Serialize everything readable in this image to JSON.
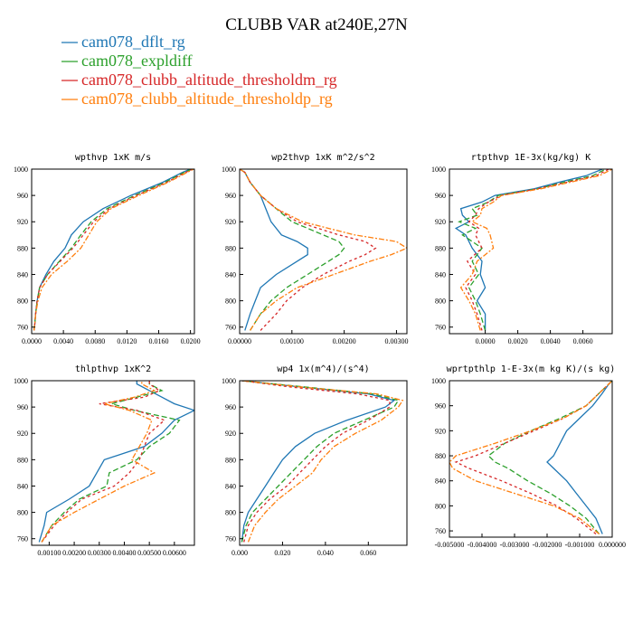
{
  "figure_title": "CLUBB VAR at240E,27N",
  "colors": {
    "blue": "#1f77b4",
    "green": "#2ca02c",
    "red": "#d62728",
    "orange": "#ff7f0e"
  },
  "legend": [
    {
      "label": "cam078_dflt_rg",
      "color": "#1f77b4",
      "dash": ""
    },
    {
      "label": "cam078_expldiff",
      "color": "#2ca02c",
      "dash": "6,3"
    },
    {
      "label": "cam078_clubb_altitude_thresholdm_rg",
      "color": "#d62728",
      "dash": "3,3"
    },
    {
      "label": "cam078_clubb_altitude_thresholdp_rg",
      "color": "#ff7f0e",
      "dash": "6,2,2,2"
    }
  ],
  "chart_data": [
    {
      "type": "line",
      "title": "wpthvp  1xK m/s",
      "xlim": [
        0,
        0.0205
      ],
      "ylim": [
        1000,
        750
      ],
      "xticks": [
        "0.0000",
        "0.0040",
        "0.0080",
        "0.0120",
        "0.0160",
        "0.0200"
      ],
      "xtick_values": [
        0,
        0.004,
        0.008,
        0.012,
        0.016,
        0.02
      ],
      "yticks": [
        "760",
        "800",
        "840",
        "880",
        "920",
        "960",
        "1000"
      ],
      "y": [
        755,
        765,
        780,
        800,
        820,
        840,
        860,
        880,
        900,
        920,
        940,
        960,
        980,
        995,
        1000
      ],
      "series": [
        {
          "color_key": "blue",
          "values": [
            0.0003,
            0.0004,
            0.0005,
            0.0007,
            0.001,
            0.0018,
            0.0028,
            0.0042,
            0.005,
            0.0065,
            0.009,
            0.0125,
            0.0165,
            0.019,
            0.02
          ]
        },
        {
          "color_key": "green",
          "values": [
            0.0003,
            0.0004,
            0.0005,
            0.0007,
            0.001,
            0.002,
            0.0035,
            0.005,
            0.0062,
            0.0075,
            0.0095,
            0.013,
            0.0168,
            0.0192,
            0.0202
          ]
        },
        {
          "color_key": "red",
          "values": [
            0.0003,
            0.0004,
            0.0005,
            0.0007,
            0.001,
            0.002,
            0.0036,
            0.0052,
            0.0065,
            0.0078,
            0.0098,
            0.0132,
            0.017,
            0.0194,
            0.0203
          ]
        },
        {
          "color_key": "orange",
          "values": [
            0.0003,
            0.0004,
            0.0005,
            0.0008,
            0.0013,
            0.0025,
            0.0045,
            0.0062,
            0.0072,
            0.0082,
            0.01,
            0.0135,
            0.0172,
            0.0196,
            0.0204
          ]
        }
      ]
    },
    {
      "type": "line",
      "title": "wp2thvp  1xK m^2/s^2",
      "xlim": [
        0,
        0.0032
      ],
      "ylim": [
        1000,
        750
      ],
      "xticks": [
        "0.00000",
        "0.00100",
        "0.00200",
        "0.00300"
      ],
      "xtick_values": [
        0,
        0.001,
        0.002,
        0.003
      ],
      "yticks": [
        "760",
        "800",
        "840",
        "880",
        "920",
        "960",
        "1000"
      ],
      "y": [
        755,
        780,
        800,
        820,
        840,
        860,
        870,
        880,
        890,
        900,
        920,
        940,
        960,
        980,
        995,
        1000
      ],
      "series": [
        {
          "color_key": "blue",
          "values": [
            0.0001,
            0.0002,
            0.0003,
            0.0004,
            0.0007,
            0.0011,
            0.0013,
            0.0013,
            0.0011,
            0.0008,
            0.0006,
            0.0005,
            0.0004,
            0.0002,
            0.0001,
            0.0
          ]
        },
        {
          "color_key": "green",
          "values": [
            0.0002,
            0.0004,
            0.0006,
            0.0009,
            0.0013,
            0.0017,
            0.0019,
            0.002,
            0.0019,
            0.0016,
            0.001,
            0.0007,
            0.0004,
            0.0002,
            0.0001,
            0.0
          ]
        },
        {
          "color_key": "red",
          "values": [
            0.0004,
            0.0007,
            0.0009,
            0.0012,
            0.0016,
            0.0021,
            0.0024,
            0.0026,
            0.0024,
            0.0019,
            0.0011,
            0.0007,
            0.0004,
            0.0002,
            0.0001,
            0.0
          ]
        },
        {
          "color_key": "orange",
          "values": [
            0.0002,
            0.0004,
            0.0007,
            0.0011,
            0.0018,
            0.0025,
            0.0029,
            0.0032,
            0.003,
            0.0022,
            0.0012,
            0.0007,
            0.0004,
            0.0002,
            0.0001,
            0.0
          ]
        }
      ]
    },
    {
      "type": "line",
      "title": "rtpthvp  1E-3x(kg/kg) K",
      "xlim": [
        -0.0022,
        0.0078
      ],
      "ylim": [
        1000,
        750
      ],
      "xticks": [
        "0.0000",
        "0.0020",
        "0.0040",
        "0.0060"
      ],
      "xtick_values": [
        0,
        0.002,
        0.004,
        0.006
      ],
      "yticks": [
        "760",
        "800",
        "840",
        "880",
        "920",
        "960",
        "1000"
      ],
      "y": [
        755,
        780,
        800,
        820,
        840,
        860,
        880,
        900,
        910,
        920,
        930,
        940,
        950,
        960,
        970,
        980,
        990,
        1000
      ],
      "series": [
        {
          "color_key": "blue",
          "values": [
            0.0,
            0.0,
            -0.0005,
            0.0,
            -0.0003,
            -0.0002,
            -0.0008,
            -0.0012,
            -0.0018,
            -0.001,
            -0.0014,
            -0.0015,
            -0.0002,
            0.0006,
            0.003,
            0.0045,
            0.0062,
            0.0072
          ]
        },
        {
          "color_key": "green",
          "values": [
            0.0,
            -0.0003,
            -0.0006,
            -0.001,
            -0.0004,
            -0.0008,
            -0.0002,
            -0.0014,
            -0.0006,
            -0.0016,
            -0.0005,
            -0.0008,
            0.0002,
            0.0008,
            0.0032,
            0.0048,
            0.0066,
            0.0074
          ]
        },
        {
          "color_key": "red",
          "values": [
            -0.0002,
            -0.0005,
            -0.0008,
            -0.0012,
            -0.0006,
            -0.0011,
            -0.0002,
            -0.0006,
            -0.0004,
            -0.001,
            -0.0006,
            -0.0004,
            0.0002,
            0.001,
            0.0032,
            0.005,
            0.0068,
            0.0076
          ]
        },
        {
          "color_key": "orange",
          "values": [
            -0.0003,
            -0.0006,
            -0.001,
            -0.0015,
            -0.0008,
            -0.0005,
            0.0005,
            0.0003,
            0.0001,
            -0.0008,
            -0.0003,
            -0.0002,
            0.0005,
            0.001,
            0.0034,
            0.0052,
            0.007,
            0.0078
          ]
        }
      ]
    },
    {
      "type": "line",
      "title": "thlpthvp  1xK^2",
      "xlim": [
        0.0003,
        0.0068
      ],
      "ylim": [
        1000,
        750
      ],
      "xticks": [
        "0.00100",
        "0.00200",
        "0.00300",
        "0.00400",
        "0.00500",
        "0.00600"
      ],
      "xtick_values": [
        0.001,
        0.002,
        0.003,
        0.004,
        0.005,
        0.006
      ],
      "yticks": [
        "760",
        "800",
        "840",
        "880",
        "920",
        "960",
        "1000"
      ],
      "y": [
        755,
        780,
        800,
        820,
        840,
        860,
        880,
        900,
        920,
        940,
        955,
        965,
        975,
        985,
        995,
        1000
      ],
      "series": [
        {
          "color_key": "blue",
          "values": [
            0.0006,
            0.0008,
            0.0009,
            0.0018,
            0.0026,
            0.0029,
            0.0032,
            0.0048,
            0.0055,
            0.006,
            0.0068,
            0.006,
            0.0055,
            0.005,
            0.0045,
            0.0045
          ]
        },
        {
          "color_key": "green",
          "values": [
            0.0007,
            0.0011,
            0.0016,
            0.0022,
            0.0033,
            0.0034,
            0.0045,
            0.005,
            0.0058,
            0.0062,
            0.0044,
            0.0035,
            0.0045,
            0.0055,
            0.005,
            0.005
          ]
        },
        {
          "color_key": "red",
          "values": [
            0.0007,
            0.0012,
            0.0017,
            0.0023,
            0.0036,
            0.0042,
            0.0046,
            0.0048,
            0.005,
            0.0056,
            0.0045,
            0.003,
            0.0048,
            0.0054,
            0.005,
            0.005
          ]
        },
        {
          "color_key": "orange",
          "values": [
            0.0007,
            0.0011,
            0.002,
            0.003,
            0.004,
            0.0052,
            0.0043,
            0.0046,
            0.0049,
            0.0051,
            0.0042,
            0.0032,
            0.0044,
            0.0052,
            0.0047,
            0.0047
          ]
        }
      ]
    },
    {
      "type": "line",
      "title": "wp4  1x(m^4)/(s^4)",
      "xlim": [
        0,
        0.078
      ],
      "ylim": [
        1000,
        750
      ],
      "xticks": [
        "0.000",
        "0.020",
        "0.040",
        "0.060"
      ],
      "xtick_values": [
        0,
        0.02,
        0.04,
        0.06
      ],
      "yticks": [
        "760",
        "800",
        "840",
        "880",
        "920",
        "960",
        "1000"
      ],
      "y": [
        755,
        780,
        800,
        820,
        840,
        860,
        880,
        900,
        920,
        940,
        960,
        970,
        980,
        990,
        1000
      ],
      "series": [
        {
          "color_key": "blue",
          "values": [
            0.001,
            0.002,
            0.004,
            0.008,
            0.012,
            0.016,
            0.02,
            0.026,
            0.035,
            0.05,
            0.068,
            0.072,
            0.06,
            0.03,
            0.001
          ]
        },
        {
          "color_key": "green",
          "values": [
            0.001,
            0.003,
            0.006,
            0.012,
            0.018,
            0.024,
            0.03,
            0.036,
            0.044,
            0.058,
            0.072,
            0.074,
            0.062,
            0.032,
            0.001
          ]
        },
        {
          "color_key": "red",
          "values": [
            0.002,
            0.004,
            0.008,
            0.014,
            0.022,
            0.028,
            0.034,
            0.04,
            0.048,
            0.06,
            0.07,
            0.07,
            0.055,
            0.025,
            0.001
          ]
        },
        {
          "color_key": "orange",
          "values": [
            0.004,
            0.007,
            0.012,
            0.018,
            0.026,
            0.034,
            0.038,
            0.044,
            0.054,
            0.066,
            0.074,
            0.076,
            0.064,
            0.03,
            0.001
          ]
        }
      ]
    },
    {
      "type": "line",
      "title": "wprtpthlp  1-E-3x(m kg K)/(s kg)",
      "xlim": [
        -0.005,
        0.0
      ],
      "ylim": [
        1000,
        750
      ],
      "xticks": [
        "-0.005000",
        "-0.004000",
        "-0.003000",
        "-0.002000",
        "-0.001000",
        "0.000000"
      ],
      "xtick_values": [
        -0.005,
        -0.004,
        -0.003,
        -0.002,
        -0.001,
        0.0
      ],
      "yticks": [
        "760",
        "800",
        "840",
        "880",
        "920",
        "960",
        "1000"
      ],
      "y": [
        755,
        780,
        800,
        820,
        840,
        860,
        870,
        880,
        900,
        920,
        940,
        960,
        980,
        995,
        1000
      ],
      "series": [
        {
          "color_key": "blue",
          "values": [
            -0.0003,
            -0.0005,
            -0.0008,
            -0.0011,
            -0.0014,
            -0.0018,
            -0.002,
            -0.0018,
            -0.0016,
            -0.0014,
            -0.001,
            -0.0006,
            -0.0003,
            -0.0001,
            0.0
          ]
        },
        {
          "color_key": "green",
          "values": [
            -0.0004,
            -0.0008,
            -0.0013,
            -0.0019,
            -0.0026,
            -0.0032,
            -0.0036,
            -0.0038,
            -0.0033,
            -0.0025,
            -0.0016,
            -0.0008,
            -0.0004,
            -0.0001,
            0.0
          ]
        },
        {
          "color_key": "red",
          "values": [
            -0.0005,
            -0.0011,
            -0.0017,
            -0.0025,
            -0.0034,
            -0.0044,
            -0.0048,
            -0.0042,
            -0.0033,
            -0.0024,
            -0.0015,
            -0.0008,
            -0.0004,
            -0.0001,
            0.0
          ]
        },
        {
          "color_key": "orange",
          "values": [
            -0.0004,
            -0.001,
            -0.0018,
            -0.003,
            -0.0042,
            -0.0049,
            -0.005,
            -0.0048,
            -0.0036,
            -0.0025,
            -0.0015,
            -0.0008,
            -0.0004,
            -0.0001,
            0.0
          ]
        }
      ]
    }
  ]
}
